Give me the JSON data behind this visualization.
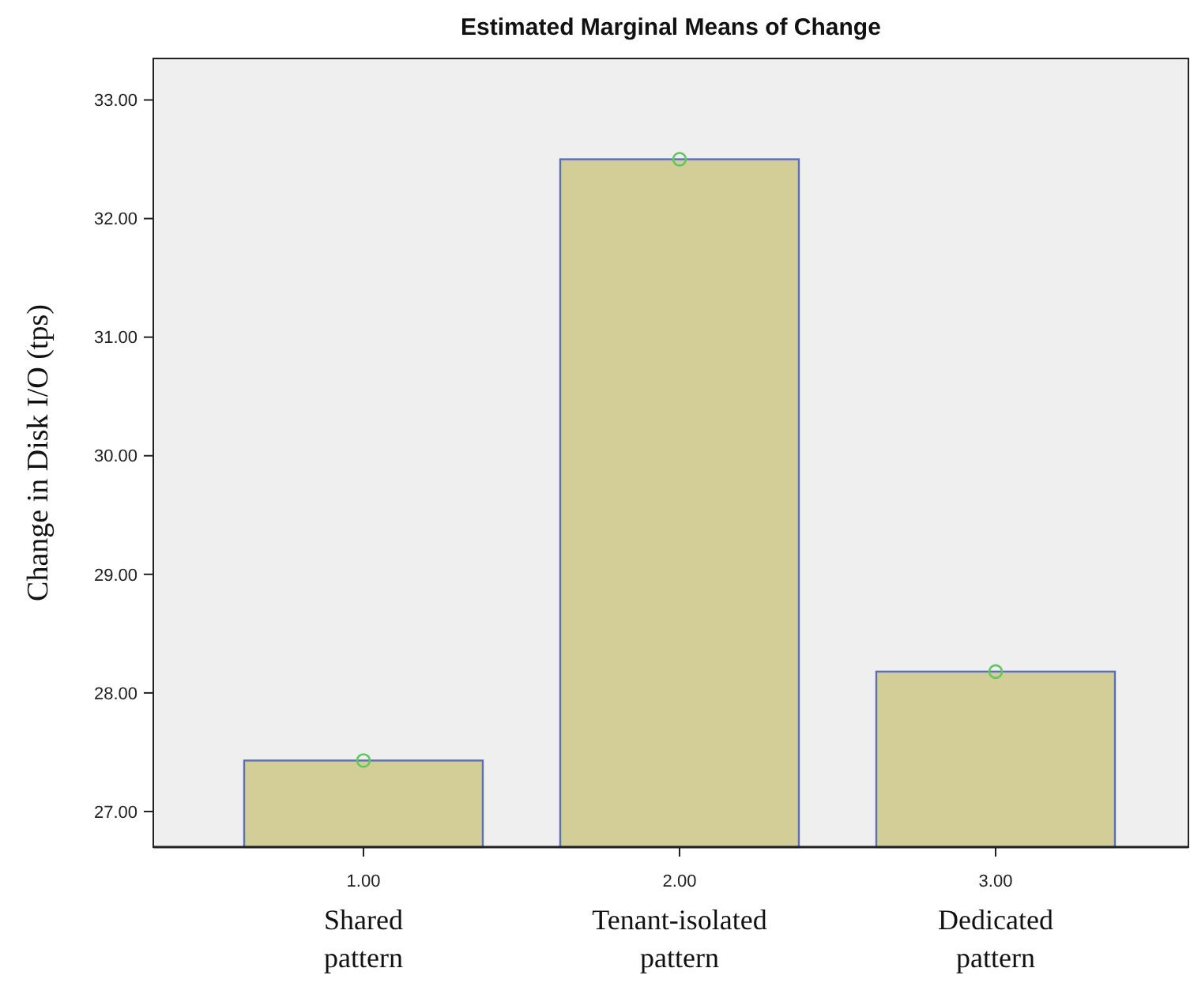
{
  "chart_data": {
    "type": "bar",
    "title": "Estimated Marginal Means of Change",
    "ylabel": "Change in Disk I/O (tps)",
    "categories": [
      "Shared pattern",
      "Tenant-isolated pattern",
      "Dedicated pattern"
    ],
    "series": [
      {
        "color": "#d3cd98",
        "values": [
          27.43,
          32.5,
          28.18
        ]
      },
      {
        "type": "scatter",
        "color": "#5fc85f",
        "marker": "circle",
        "x": [
          "Shared pattern",
          "Tenant-isolated pattern",
          "Dedicated pattern"
        ],
        "values": [
          27.43,
          32.5,
          28.18
        ]
      }
    ],
    "annotations": [
      "1.00",
      "2.00",
      "3.00"
    ],
    "ylim": [
      26.7,
      33.35
    ],
    "yticks": [
      {
        "value": 27,
        "label": "27.00"
      },
      {
        "value": 28,
        "label": "28.00"
      },
      {
        "value": 29,
        "label": "29.00"
      },
      {
        "value": 30,
        "label": "30.00"
      },
      {
        "value": 31,
        "label": "31.00"
      },
      {
        "value": 32,
        "label": "32.00"
      },
      {
        "value": 33,
        "label": "33.00"
      }
    ],
    "grid": false
  }
}
